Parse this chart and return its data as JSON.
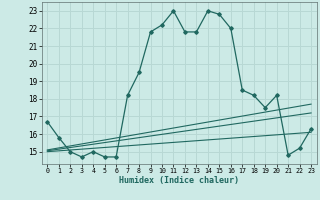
{
  "xlabel": "Humidex (Indice chaleur)",
  "main_x": [
    0,
    1,
    2,
    3,
    4,
    5,
    6,
    7,
    8,
    9,
    10,
    11,
    12,
    13,
    14,
    15,
    16,
    17,
    18,
    19,
    20,
    21,
    22,
    23
  ],
  "main_y": [
    16.7,
    15.8,
    15.0,
    14.7,
    15.0,
    14.7,
    14.7,
    18.2,
    19.5,
    21.8,
    22.2,
    23.0,
    21.8,
    21.8,
    23.0,
    22.8,
    22.0,
    18.5,
    18.2,
    17.5,
    18.2,
    14.8,
    15.2,
    16.3
  ],
  "line1_x": [
    0,
    23
  ],
  "line1_y": [
    15.1,
    17.7
  ],
  "line2_x": [
    0,
    23
  ],
  "line2_y": [
    15.05,
    17.2
  ],
  "line3_x": [
    0,
    23
  ],
  "line3_y": [
    15.0,
    16.1
  ],
  "color": "#206860",
  "bg_color": "#cceae6",
  "grid_color": "#b8d8d4",
  "xlim": [
    -0.5,
    23.5
  ],
  "ylim": [
    14.3,
    23.5
  ],
  "yticks": [
    15,
    16,
    17,
    18,
    19,
    20,
    21,
    22,
    23
  ],
  "xticks": [
    0,
    1,
    2,
    3,
    4,
    5,
    6,
    7,
    8,
    9,
    10,
    11,
    12,
    13,
    14,
    15,
    16,
    17,
    18,
    19,
    20,
    21,
    22,
    23
  ]
}
